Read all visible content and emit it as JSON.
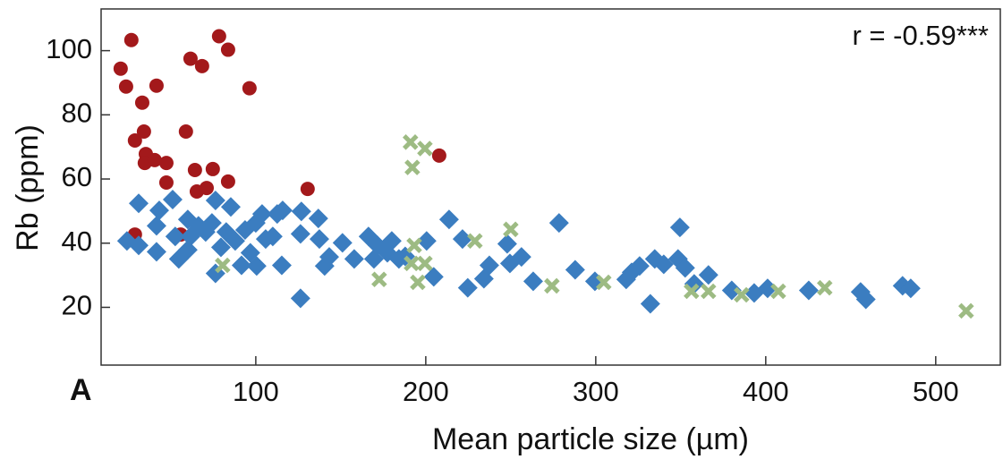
{
  "chart_data": {
    "type": "scatter",
    "panel_label": "A",
    "annotation": "r = -0.59***",
    "x_label": "Mean particle size (µm)",
    "y_label": "Rb (ppm)",
    "xlim": [
      9,
      538
    ],
    "ylim": [
      2,
      113
    ],
    "xticks": [
      100,
      200,
      300,
      400,
      500
    ],
    "yticks": [
      20,
      40,
      60,
      80,
      100
    ],
    "series": [
      {
        "color": "#a3191b",
        "marker": "circle",
        "x": [
          20.5,
          23.7,
          26.8,
          41.6,
          33.2,
          34.2,
          28.9,
          35.3,
          34.7,
          40.5,
          47.4,
          47.4,
          61.6,
          68.4,
          78.4,
          83.7,
          96.3,
          58.9,
          64.2,
          74.7,
          65.3,
          71.1,
          83.7,
          130.5,
          207.9,
          28.9,
          55.8
        ],
        "values": [
          94.4,
          88.8,
          103.3,
          89.1,
          83.8,
          74.8,
          72,
          67.8,
          65,
          65.9,
          65,
          58.9,
          97.5,
          95.2,
          104.5,
          100.3,
          88.3,
          74.8,
          62.8,
          63.1,
          56.1,
          57.2,
          59.2,
          56.9,
          67.3,
          42.7,
          42.7
        ]
      },
      {
        "color": "#3b7dc0",
        "marker": "diamond",
        "x": [
          24.2,
          31.1,
          31.1,
          41.6,
          43.2,
          41.6,
          51.1,
          52.6,
          54.7,
          60,
          60,
          61.6,
          66.3,
          70.5,
          74.2,
          76.3,
          76.3,
          79.5,
          82.6,
          85.3,
          87.9,
          91.6,
          93.7,
          96.8,
          100,
          100.5,
          103.7,
          105.8,
          110,
          112.6,
          115.8,
          115.3,
          126.8,
          126.3,
          126.3,
          136.8,
          137.4,
          140.5,
          143.2,
          151,
          157.9,
          166.3,
          169.5,
          171.6,
          177.4,
          180,
          184.2,
          187.9,
          200.5,
          204.7,
          213.7,
          221.6,
          224.7,
          234.2,
          237.4,
          247.9,
          249.5,
          256.3,
          263.2,
          278.4,
          287.9,
          299.5,
          317.9,
          321.1,
          325.8,
          332.1,
          334.7,
          340,
          348.4,
          349.5,
          352.6,
          357.9,
          366.3,
          380,
          393.2,
          401.1,
          425.3,
          455.8,
          458.9,
          480.5,
          485.3
        ],
        "values": [
          40.7,
          52.4,
          39.3,
          37.3,
          50.2,
          45.4,
          53.6,
          42.1,
          35.1,
          47.4,
          37.9,
          42.1,
          45.4,
          43.5,
          46.3,
          30.6,
          53.3,
          38.7,
          43.5,
          51.3,
          40.7,
          33.1,
          44.1,
          37,
          46.3,
          32.9,
          49.1,
          41.3,
          42.1,
          49.1,
          50.2,
          33.1,
          49.9,
          22.8,
          42.9,
          47.7,
          41.3,
          32.9,
          35.7,
          40.1,
          35.1,
          42.1,
          35.1,
          39.3,
          37,
          40.7,
          35.1,
          35.9,
          40.7,
          29.5,
          47.4,
          41.3,
          26.1,
          28.9,
          33.1,
          39.8,
          33.7,
          35.7,
          28.1,
          46.3,
          31.7,
          28.1,
          28.7,
          30.9,
          32.9,
          21.1,
          35.1,
          33.4,
          35.1,
          44.9,
          32.3,
          27.3,
          30.1,
          25.3,
          24.5,
          25.9,
          25.3,
          24.8,
          22.5,
          26.7,
          25.9
        ]
      },
      {
        "color": "#9dbb83",
        "marker": "x",
        "x": [
          191,
          199.5,
          192.1,
          193.2,
          191.6,
          199.5,
          195.3,
          172.6,
          228.9,
          250,
          274.2,
          304.7,
          356.3,
          366.3,
          385.8,
          407.4,
          434.7,
          517.9,
          80.5
        ],
        "values": [
          71.5,
          69.5,
          63.6,
          39.3,
          33.7,
          33.7,
          27.8,
          28.7,
          40.7,
          44.3,
          26.7,
          27.8,
          25,
          25,
          23.9,
          25,
          26.1,
          18.9,
          33.1
        ]
      }
    ]
  }
}
